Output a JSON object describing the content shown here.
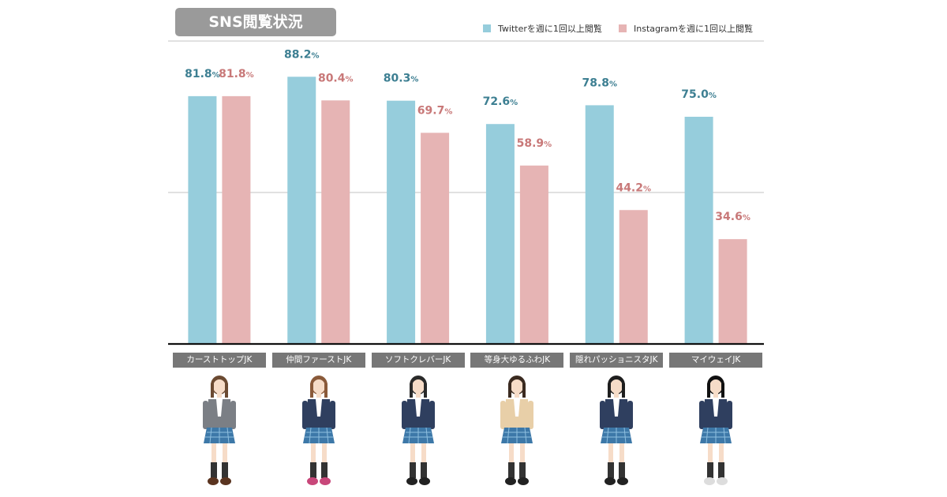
{
  "title": "SNS閲覧状況",
  "legend": [
    {
      "label": "Twitterを週に1回以上閲覧",
      "color": "#96cddc"
    },
    {
      "label": "Instagramを週に1回以上閲覧",
      "color": "#e6b4b4"
    }
  ],
  "chart_data": {
    "type": "bar",
    "title": "SNS閲覧状況",
    "categories": [
      "カーストトップJK",
      "仲間ファーストJK",
      "ソフトクレバーJK",
      "等身大ゆるふわJK",
      "隠れパッショニスタJK",
      "マイウェイJK"
    ],
    "series": [
      {
        "name": "Twitterを週に1回以上閲覧",
        "values": [
          81.8,
          88.2,
          80.3,
          72.6,
          78.8,
          75.0
        ],
        "color": "#96cddc",
        "label_color": "#3d7f92"
      },
      {
        "name": "Instagramを週に1回以上閲覧",
        "values": [
          81.8,
          80.4,
          69.7,
          58.9,
          44.2,
          34.6
        ],
        "color": "#e6b4b4",
        "label_color": "#c87878"
      }
    ],
    "value_suffix": "%",
    "ylim": [
      0,
      100
    ],
    "gridlines": [
      50,
      100
    ],
    "legend_position": "top-right",
    "xlabel": "",
    "ylabel": ""
  },
  "figures": [
    {
      "icon": "student-figure-icon",
      "hair": "#6b4a32",
      "jacket": "#7b7f85",
      "skirt": "#3d78a8",
      "shoes": "#5a3420"
    },
    {
      "icon": "student-figure-icon",
      "hair": "#8a5a3a",
      "jacket": "#2f3f5f",
      "skirt": "#3d78a8",
      "shoes": "#c8477a"
    },
    {
      "icon": "student-figure-icon",
      "hair": "#2a2a2a",
      "jacket": "#2f3f5f",
      "skirt": "#3d78a8",
      "shoes": "#222222"
    },
    {
      "icon": "student-figure-icon",
      "hair": "#3a2a20",
      "jacket": "#e8cfa8",
      "skirt": "#3d78a8",
      "shoes": "#222222"
    },
    {
      "icon": "student-figure-icon",
      "hair": "#1e1e1e",
      "jacket": "#2f3f5f",
      "skirt": "#3d78a8",
      "shoes": "#222222"
    },
    {
      "icon": "student-figure-icon",
      "hair": "#111111",
      "jacket": "#2f3f5f",
      "skirt": "#3d78a8",
      "shoes": "#dddddd"
    }
  ]
}
